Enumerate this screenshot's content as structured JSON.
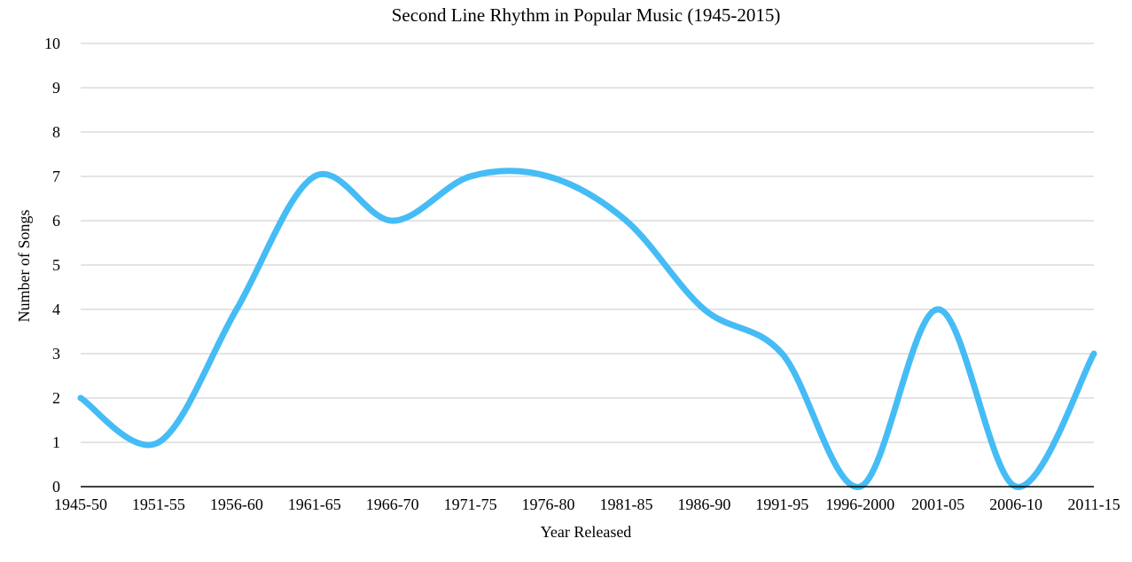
{
  "chart_data": {
    "type": "line",
    "title": "Second Line Rhythm in Popular Music (1945-2015)",
    "xlabel": "Year Released",
    "ylabel": "Number of Songs",
    "categories": [
      "1945-50",
      "1951-55",
      "1956-60",
      "1961-65",
      "1966-70",
      "1971-75",
      "1976-80",
      "1981-85",
      "1986-90",
      "1991-95",
      "1996-2000",
      "2001-05",
      "2006-10",
      "2011-15"
    ],
    "series": [
      {
        "values": [
          2,
          1,
          4,
          7,
          6,
          7,
          7,
          6,
          4,
          3,
          0,
          4,
          0,
          3
        ]
      }
    ],
    "ylim": [
      0,
      10
    ],
    "yticks": [
      0,
      1,
      2,
      3,
      4,
      5,
      6,
      7,
      8,
      9,
      10
    ],
    "grid": true,
    "smooth": true,
    "legend": "none",
    "line_color": "#45BCF5",
    "grid_color": "#C8C8C8",
    "axis_color": "#000000"
  }
}
